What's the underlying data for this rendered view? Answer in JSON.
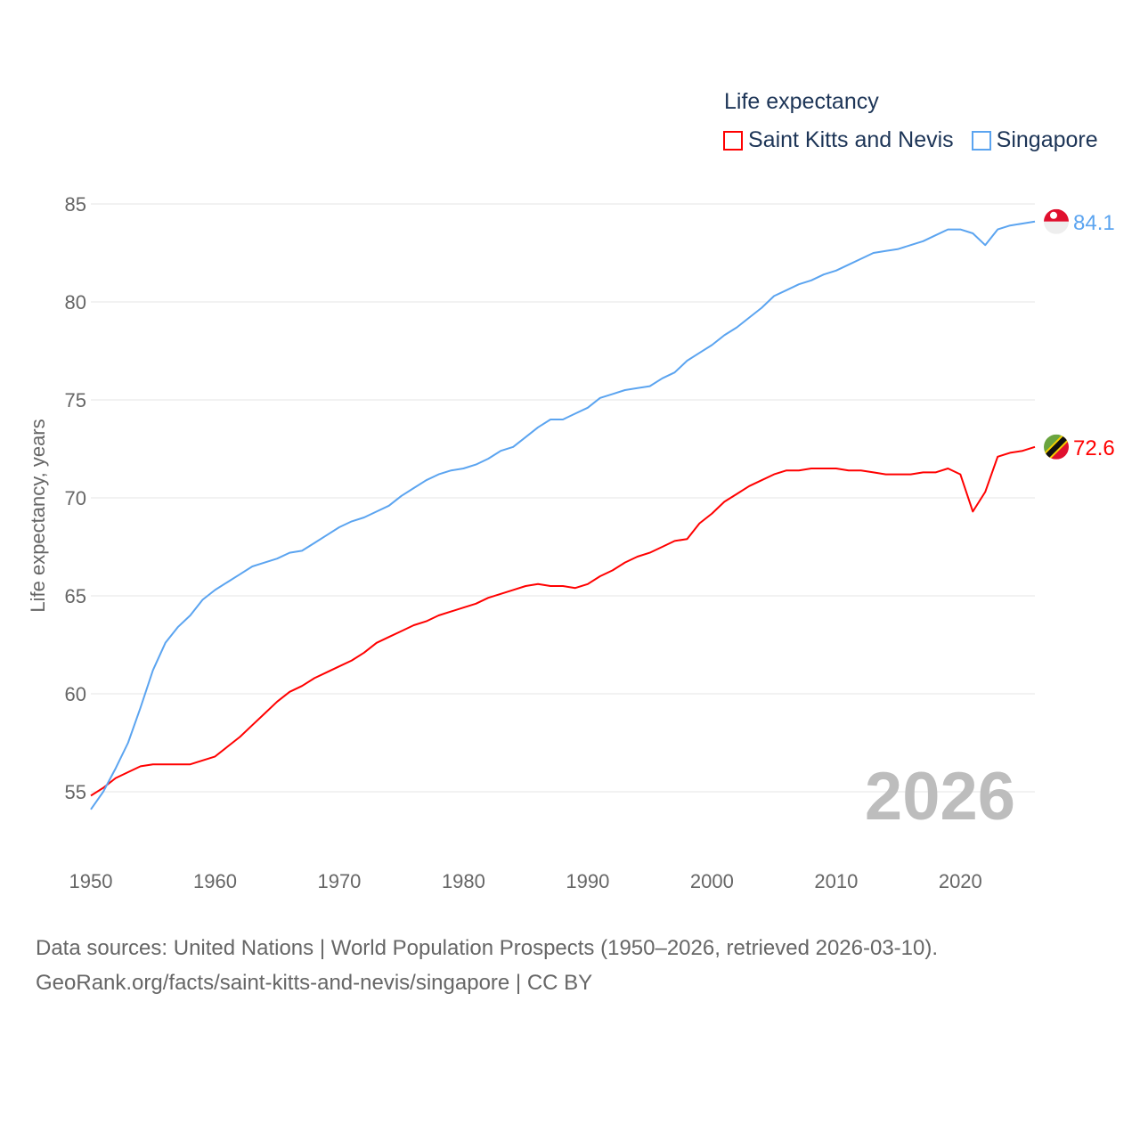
{
  "chart_data": {
    "type": "line",
    "title": "Life expectancy",
    "ylabel": "Life expectancy, years",
    "xlabel": "",
    "xlim": [
      1950,
      2026
    ],
    "ylim": [
      54,
      86
    ],
    "yticks": [
      55,
      60,
      65,
      70,
      75,
      80,
      85
    ],
    "xticks": [
      1950,
      1960,
      1970,
      1980,
      1990,
      2000,
      2010,
      2020
    ],
    "grid": true,
    "legend_position": "top-right",
    "year_watermark": "2026",
    "x": [
      1950,
      1951,
      1952,
      1953,
      1954,
      1955,
      1956,
      1957,
      1958,
      1959,
      1960,
      1961,
      1962,
      1963,
      1964,
      1965,
      1966,
      1967,
      1968,
      1969,
      1970,
      1971,
      1972,
      1973,
      1974,
      1975,
      1976,
      1977,
      1978,
      1979,
      1980,
      1981,
      1982,
      1983,
      1984,
      1985,
      1986,
      1987,
      1988,
      1989,
      1990,
      1991,
      1992,
      1993,
      1994,
      1995,
      1996,
      1997,
      1998,
      1999,
      2000,
      2001,
      2002,
      2003,
      2004,
      2005,
      2006,
      2007,
      2008,
      2009,
      2010,
      2011,
      2012,
      2013,
      2014,
      2015,
      2016,
      2017,
      2018,
      2019,
      2020,
      2021,
      2022,
      2023,
      2024,
      2025,
      2026
    ],
    "series": [
      {
        "name": "Saint Kitts and Nevis",
        "color": "#ff0000",
        "end_label": "72.6",
        "flag": "saint-kitts-and-nevis-flag",
        "values": [
          54.8,
          55.2,
          55.7,
          56.0,
          56.3,
          56.4,
          56.4,
          56.4,
          56.4,
          56.6,
          56.8,
          57.3,
          57.8,
          58.4,
          59.0,
          59.6,
          60.1,
          60.4,
          60.8,
          61.1,
          61.4,
          61.7,
          62.1,
          62.6,
          62.9,
          63.2,
          63.5,
          63.7,
          64.0,
          64.2,
          64.4,
          64.6,
          64.9,
          65.1,
          65.3,
          65.5,
          65.6,
          65.5,
          65.5,
          65.4,
          65.6,
          66.0,
          66.3,
          66.7,
          67.0,
          67.2,
          67.5,
          67.8,
          67.9,
          68.7,
          69.2,
          69.8,
          70.2,
          70.6,
          70.9,
          71.2,
          71.4,
          71.4,
          71.5,
          71.5,
          71.5,
          71.4,
          71.4,
          71.3,
          71.2,
          71.2,
          71.2,
          71.3,
          71.3,
          71.5,
          71.2,
          69.3,
          70.3,
          72.1,
          72.3,
          72.4,
          72.6
        ]
      },
      {
        "name": "Singapore",
        "color": "#5ba4f0",
        "end_label": "84.1",
        "flag": "singapore-flag",
        "values": [
          54.1,
          55.0,
          56.2,
          57.5,
          59.3,
          61.2,
          62.6,
          63.4,
          64.0,
          64.8,
          65.3,
          65.7,
          66.1,
          66.5,
          66.7,
          66.9,
          67.2,
          67.3,
          67.7,
          68.1,
          68.5,
          68.8,
          69.0,
          69.3,
          69.6,
          70.1,
          70.5,
          70.9,
          71.2,
          71.4,
          71.5,
          71.7,
          72.0,
          72.4,
          72.6,
          73.1,
          73.6,
          74.0,
          74.0,
          74.3,
          74.6,
          75.1,
          75.3,
          75.5,
          75.6,
          75.7,
          76.1,
          76.4,
          77.0,
          77.4,
          77.8,
          78.3,
          78.7,
          79.2,
          79.7,
          80.3,
          80.6,
          80.9,
          81.1,
          81.4,
          81.6,
          81.9,
          82.2,
          82.5,
          82.6,
          82.7,
          82.9,
          83.1,
          83.4,
          83.7,
          83.7,
          83.5,
          82.9,
          83.7,
          83.9,
          84.0,
          84.1
        ]
      }
    ]
  },
  "sources": {
    "line1": "Data sources: United Nations | World Population Prospects (1950–2026, retrieved 2026-03-10).",
    "line2": "GeoRank.org/facts/saint-kitts-and-nevis/singapore | CC BY"
  }
}
